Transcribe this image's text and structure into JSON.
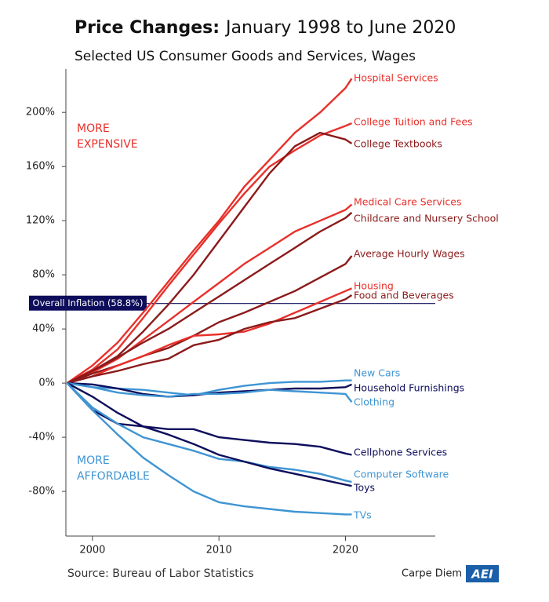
{
  "chart_data": {
    "type": "line",
    "title": {
      "lead": "Price Changes:",
      "rest": "January 1998 to June 2020"
    },
    "subtitle": "Selected US Consumer Goods and Services, Wages",
    "annotations": {
      "expensive": [
        "MORE",
        "EXPENSIVE"
      ],
      "affordable": [
        "MORE",
        "AFFORDABLE"
      ],
      "inflation": "Overall Inflation (58.8%)"
    },
    "inflation": 58.8,
    "inflation_color": "#0d0d5c",
    "source": "Source: Bureau of Labor Statistics",
    "brand": "Carpe Diem",
    "logo": "AEI",
    "x": [
      1998,
      2000,
      2002,
      2004,
      2006,
      2008,
      2010,
      2012,
      2014,
      2016,
      2018,
      2020,
      2020.5
    ],
    "xlim": [
      1997.9,
      2027.1
    ],
    "xticks": [
      2000,
      2010,
      2020
    ],
    "ylim": [
      -113,
      232
    ],
    "yticks": [
      {
        "value": -80,
        "label": "-80%"
      },
      {
        "value": -40,
        "label": "-40%"
      },
      {
        "value": 0,
        "label": "0%"
      },
      {
        "value": 40,
        "label": "40%"
      },
      {
        "value": 80,
        "label": "80%"
      },
      {
        "value": 120,
        "label": "120%"
      },
      {
        "value": 160,
        "label": "160%"
      },
      {
        "value": 200,
        "label": "200%"
      }
    ],
    "series": [
      {
        "name": "Hospital Services",
        "color": "#e8302a",
        "values": [
          0,
          13,
          30,
          52,
          75,
          98,
          120,
          145,
          165,
          185,
          200,
          218,
          225
        ]
      },
      {
        "name": "College Tuition and Fees",
        "color": "#e8302a",
        "values": [
          0,
          10,
          25,
          48,
          72,
          95,
          118,
          140,
          160,
          172,
          183,
          190,
          192
        ]
      },
      {
        "name": "College Textbooks",
        "color": "#8b1a1a",
        "values": [
          0,
          9,
          20,
          38,
          58,
          80,
          105,
          130,
          155,
          175,
          185,
          180,
          177
        ]
      },
      {
        "name": "Medical Care Services",
        "color": "#e8302a",
        "values": [
          0,
          8,
          18,
          32,
          46,
          60,
          74,
          88,
          100,
          112,
          120,
          128,
          132
        ]
      },
      {
        "name": "Childcare and Nursery School",
        "color": "#8b1a1a",
        "values": [
          0,
          9,
          19,
          30,
          40,
          52,
          64,
          76,
          88,
          100,
          112,
          122,
          126
        ]
      },
      {
        "name": "Average Hourly Wages",
        "color": "#8b1a1a",
        "values": [
          0,
          7,
          13,
          20,
          26,
          35,
          45,
          52,
          60,
          68,
          78,
          88,
          94
        ]
      },
      {
        "name": "Housing",
        "color": "#e8302a",
        "values": [
          0,
          5,
          13,
          20,
          28,
          35,
          36,
          38,
          44,
          52,
          60,
          68,
          70
        ]
      },
      {
        "name": "Food and Beverages",
        "color": "#8b1a1a",
        "values": [
          0,
          5,
          9,
          14,
          18,
          28,
          32,
          40,
          45,
          48,
          55,
          62,
          65
        ]
      },
      {
        "name": "New Cars",
        "color": "#3f95d3",
        "values": [
          0,
          -3,
          -4,
          -5,
          -7,
          -9,
          -5,
          -2,
          0,
          1,
          1,
          2,
          2
        ]
      },
      {
        "name": "Household Furnishings",
        "color": "#0d0d5c",
        "values": [
          0,
          -1,
          -4,
          -8,
          -10,
          -9,
          -7,
          -6,
          -5,
          -4,
          -4,
          -3,
          -1
        ]
      },
      {
        "name": "Clothing",
        "color": "#3f95d3",
        "values": [
          0,
          -3,
          -7,
          -9,
          -10,
          -8,
          -8,
          -7,
          -5,
          -6,
          -7,
          -8,
          -14
        ]
      },
      {
        "name": "Cellphone Services",
        "color": "#0d0d5c",
        "values": [
          0,
          -20,
          -30,
          -32,
          -34,
          -34,
          -40,
          -42,
          -44,
          -45,
          -47,
          -52,
          -53
        ]
      },
      {
        "name": "Computer Software",
        "color": "#3f95d3",
        "values": [
          0,
          -18,
          -30,
          -40,
          -45,
          -50,
          -56,
          -58,
          -62,
          -64,
          -67,
          -72,
          -73
        ]
      },
      {
        "name": "Toys",
        "color": "#0d0d5c",
        "values": [
          0,
          -10,
          -22,
          -32,
          -38,
          -45,
          -53,
          -58,
          -63,
          -67,
          -71,
          -75,
          -76
        ]
      },
      {
        "name": "TVs",
        "color": "#3f95d3",
        "values": [
          0,
          -20,
          -38,
          -55,
          -68,
          -80,
          -88,
          -91,
          -93,
          -95,
          -96,
          -97,
          -97
        ]
      }
    ]
  }
}
